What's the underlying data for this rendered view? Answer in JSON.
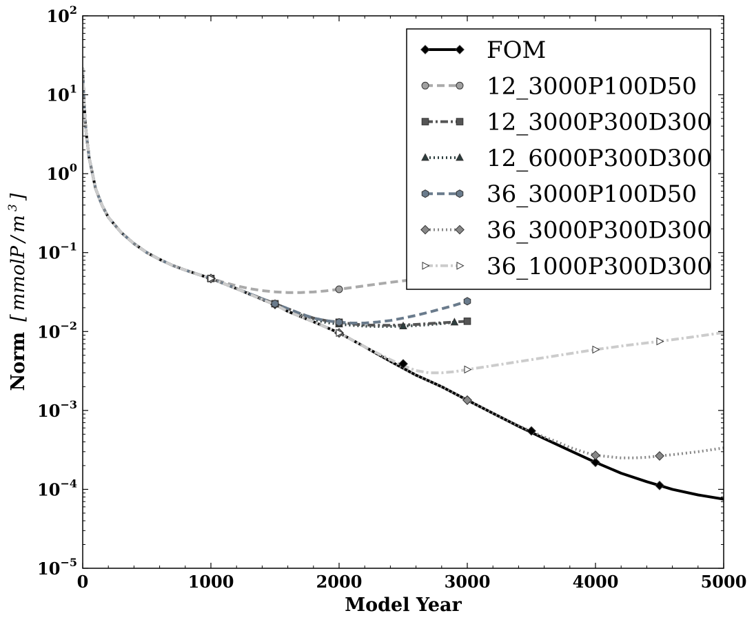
{
  "chart_data": {
    "type": "line",
    "xlabel": "Model Year",
    "ylabel": "Norm",
    "yunit_parts": [
      "[",
      "mmolP",
      "/",
      "m",
      "3",
      "]"
    ],
    "xlim": [
      0,
      5000
    ],
    "ylim": [
      1e-05,
      100
    ],
    "yscale": "log",
    "grid": false,
    "legend_position": "top-right",
    "x_ticks": [
      {
        "value": 0,
        "label": "0"
      },
      {
        "value": 1000,
        "label": "1000"
      },
      {
        "value": 2000,
        "label": "2000"
      },
      {
        "value": 3000,
        "label": "3000"
      },
      {
        "value": 4000,
        "label": "4000"
      },
      {
        "value": 5000,
        "label": "5000"
      }
    ],
    "y_ticks": [
      {
        "value": 100,
        "base": "10",
        "exp": "2"
      },
      {
        "value": 10,
        "base": "10",
        "exp": "1"
      },
      {
        "value": 1,
        "base": "10",
        "exp": "0"
      },
      {
        "value": 0.1,
        "base": "10",
        "exp": "−1"
      },
      {
        "value": 0.01,
        "base": "10",
        "exp": "−2"
      },
      {
        "value": 0.001,
        "base": "10",
        "exp": "−3"
      },
      {
        "value": 0.0001,
        "base": "10",
        "exp": "−4"
      },
      {
        "value": 1e-05,
        "base": "10",
        "exp": "−5"
      }
    ],
    "series": [
      {
        "name": "FOM",
        "color": "#000000",
        "line_style": "solid",
        "line_width": 4,
        "marker": "diamond",
        "marker_fill": "#000000",
        "x": [
          0,
          10,
          25,
          50,
          100,
          150,
          200,
          300,
          400,
          500,
          600,
          700,
          800,
          900,
          1000,
          1200,
          1400,
          1500,
          1600,
          1800,
          2000,
          2200,
          2400,
          2600,
          2800,
          3000,
          3200,
          3400,
          3600,
          3800,
          4000,
          4200,
          4400,
          4500,
          4600,
          4800,
          5000
        ],
        "y": [
          22,
          8,
          3.5,
          1.6,
          0.65,
          0.4,
          0.28,
          0.18,
          0.13,
          0.1,
          0.082,
          0.069,
          0.06,
          0.053,
          0.047,
          0.035,
          0.0255,
          0.022,
          0.018,
          0.0133,
          0.0096,
          0.0064,
          0.0042,
          0.0028,
          0.002,
          0.00135,
          0.00092,
          0.00063,
          0.00044,
          0.00031,
          0.00022,
          0.00016,
          0.000125,
          0.000112,
          0.0001,
          8.5e-05,
          7.5e-05
        ],
        "marker_x": [
          1000,
          1500,
          2000,
          2500,
          3000,
          3500,
          4000,
          4500
        ],
        "marker_y": [
          0.047,
          0.022,
          0.0096,
          0.0039,
          0.00135,
          0.00055,
          0.00022,
          0.000112
        ]
      },
      {
        "name": "12_3000P100D50",
        "color": "#aaaaaa",
        "line_style": "dashed",
        "line_width": 4,
        "marker": "circle",
        "marker_fill": "#a0a0a0",
        "x": [
          0,
          10,
          25,
          50,
          100,
          150,
          200,
          300,
          400,
          500,
          600,
          700,
          800,
          900,
          1000,
          1100,
          1200,
          1300,
          1400,
          1500,
          1600,
          1700,
          1800,
          1900,
          2000,
          2200,
          2400,
          2600,
          2800,
          3000
        ],
        "y": [
          22,
          8,
          3.5,
          1.6,
          0.65,
          0.4,
          0.28,
          0.18,
          0.13,
          0.1,
          0.082,
          0.069,
          0.06,
          0.053,
          0.047,
          0.042,
          0.038,
          0.035,
          0.033,
          0.0318,
          0.0312,
          0.0312,
          0.0317,
          0.0328,
          0.0343,
          0.038,
          0.042,
          0.046,
          0.05,
          0.054
        ],
        "marker_x": [
          1000,
          2000
        ],
        "marker_y": [
          0.047,
          0.0343
        ]
      },
      {
        "name": "12_3000P300D300",
        "color": "#555555",
        "line_style": "dashdot",
        "line_width": 4,
        "marker": "square",
        "marker_fill": "#555555",
        "x": [
          0,
          10,
          25,
          50,
          100,
          150,
          200,
          300,
          400,
          500,
          600,
          700,
          800,
          900,
          1000,
          1200,
          1400,
          1500,
          1600,
          1700,
          1800,
          1900,
          2000,
          2100,
          2200,
          2300,
          2400,
          2500,
          2600,
          2700,
          2800,
          2900,
          3000
        ],
        "y": [
          22,
          8,
          3.5,
          1.6,
          0.65,
          0.4,
          0.28,
          0.18,
          0.13,
          0.1,
          0.082,
          0.069,
          0.06,
          0.053,
          0.047,
          0.035,
          0.026,
          0.0225,
          0.0195,
          0.0168,
          0.0148,
          0.0137,
          0.0131,
          0.0125,
          0.0121,
          0.012,
          0.012,
          0.0121,
          0.0123,
          0.0126,
          0.0129,
          0.0132,
          0.0135
        ],
        "marker_x": [
          1000,
          1500,
          2000,
          3000
        ],
        "marker_y": [
          0.047,
          0.0225,
          0.0131,
          0.0135
        ]
      },
      {
        "name": "12_6000P300D300",
        "color": "#2d3e3e",
        "line_style": "dotted",
        "line_width": 4,
        "marker": "triangle",
        "marker_fill": "#2d3e3e",
        "x": [
          0,
          10,
          25,
          50,
          100,
          150,
          200,
          300,
          400,
          500,
          600,
          700,
          800,
          900,
          1000,
          1200,
          1400,
          1500,
          1600,
          1700,
          1800,
          1900,
          2000,
          2100,
          2200,
          2300,
          2400,
          2500,
          2600,
          2700,
          2800,
          2900
        ],
        "y": [
          22,
          8,
          3.5,
          1.6,
          0.65,
          0.4,
          0.28,
          0.18,
          0.13,
          0.1,
          0.082,
          0.069,
          0.06,
          0.053,
          0.047,
          0.035,
          0.026,
          0.0225,
          0.0192,
          0.0163,
          0.0142,
          0.013,
          0.0124,
          0.012,
          0.0117,
          0.0116,
          0.0116,
          0.0117,
          0.0119,
          0.0122,
          0.0126,
          0.0131
        ],
        "marker_x": [
          1000,
          1500,
          2000,
          2500,
          2900
        ],
        "marker_y": [
          0.047,
          0.0225,
          0.0124,
          0.0117,
          0.0131
        ]
      },
      {
        "name": "36_3000P100D50",
        "color": "#6a7b8c",
        "line_style": "dashed",
        "line_width": 4,
        "marker": "hexagon",
        "marker_fill": "#6a7b8c",
        "x": [
          0,
          10,
          25,
          50,
          100,
          150,
          200,
          300,
          400,
          500,
          600,
          700,
          800,
          900,
          1000,
          1200,
          1400,
          1500,
          1600,
          1700,
          1800,
          1900,
          2000,
          2100,
          2200,
          2300,
          2400,
          2500,
          2600,
          2700,
          2800,
          2900,
          3000
        ],
        "y": [
          22,
          8,
          3.5,
          1.6,
          0.65,
          0.4,
          0.28,
          0.18,
          0.13,
          0.1,
          0.082,
          0.069,
          0.06,
          0.053,
          0.047,
          0.035,
          0.026,
          0.0225,
          0.0195,
          0.0168,
          0.0148,
          0.0137,
          0.0131,
          0.0128,
          0.0128,
          0.0132,
          0.0138,
          0.0148,
          0.016,
          0.0176,
          0.0194,
          0.0215,
          0.0242
        ],
        "marker_x": [
          1000,
          1500,
          2000,
          3000
        ],
        "marker_y": [
          0.047,
          0.0225,
          0.0131,
          0.0242
        ]
      },
      {
        "name": "36_3000P300D300",
        "color": "#888888",
        "line_style": "dotted",
        "line_width": 4,
        "marker": "diamond",
        "marker_fill": "#888888",
        "x": [
          0,
          10,
          25,
          50,
          100,
          150,
          200,
          300,
          400,
          500,
          600,
          700,
          800,
          900,
          1000,
          1200,
          1400,
          1500,
          1600,
          1800,
          2000,
          2200,
          2400,
          2600,
          2800,
          3000,
          3200,
          3400,
          3600,
          3700,
          3800,
          3900,
          4000,
          4100,
          4200,
          4300,
          4400,
          4500,
          4600,
          4800,
          5000
        ],
        "y": [
          22,
          8,
          3.5,
          1.6,
          0.65,
          0.4,
          0.28,
          0.18,
          0.13,
          0.1,
          0.082,
          0.069,
          0.06,
          0.053,
          0.047,
          0.035,
          0.0255,
          0.022,
          0.018,
          0.0133,
          0.0096,
          0.0064,
          0.0042,
          0.0028,
          0.002,
          0.00135,
          0.00092,
          0.00064,
          0.00046,
          0.0004,
          0.00034,
          0.0003,
          0.00027,
          0.00026,
          0.00025,
          0.00025,
          0.000255,
          0.000265,
          0.000275,
          0.0003,
          0.000335
        ],
        "marker_x": [
          1000,
          2000,
          3000,
          4000,
          4500
        ],
        "marker_y": [
          0.047,
          0.0096,
          0.00135,
          0.00027,
          0.000265
        ]
      },
      {
        "name": "36_1000P300D300",
        "color": "#cccccc",
        "line_style": "dashdot",
        "line_width": 4,
        "marker": "triangle-right",
        "marker_fill": "#ffffff",
        "x": [
          0,
          10,
          25,
          50,
          100,
          150,
          200,
          300,
          400,
          500,
          600,
          700,
          800,
          900,
          1000,
          1200,
          1400,
          1500,
          1600,
          1800,
          2000,
          2200,
          2400,
          2500,
          2600,
          2700,
          2800,
          2900,
          3000,
          3250,
          3500,
          3750,
          4000,
          4250,
          4500,
          4750,
          5000
        ],
        "y": [
          22,
          8,
          3.5,
          1.6,
          0.65,
          0.4,
          0.28,
          0.18,
          0.13,
          0.1,
          0.082,
          0.069,
          0.06,
          0.053,
          0.047,
          0.035,
          0.0255,
          0.022,
          0.018,
          0.0133,
          0.0096,
          0.0064,
          0.0044,
          0.0037,
          0.0032,
          0.003,
          0.003,
          0.0031,
          0.0033,
          0.0038,
          0.0044,
          0.0051,
          0.0059,
          0.0067,
          0.0075,
          0.0085,
          0.0097
        ],
        "marker_x": [
          1000,
          2000,
          3000,
          4000,
          4500
        ],
        "marker_y": [
          0.047,
          0.0096,
          0.0033,
          0.0059,
          0.0075
        ]
      }
    ]
  }
}
